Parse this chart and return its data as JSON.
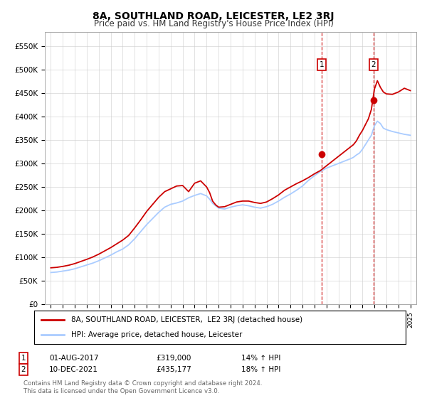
{
  "title": "8A, SOUTHLAND ROAD, LEICESTER, LE2 3RJ",
  "subtitle": "Price paid vs. HM Land Registry's House Price Index (HPI)",
  "ylabel_ticks": [
    "£0",
    "£50K",
    "£100K",
    "£150K",
    "£200K",
    "£250K",
    "£300K",
    "£350K",
    "£400K",
    "£450K",
    "£500K",
    "£550K"
  ],
  "ytick_values": [
    0,
    50000,
    100000,
    150000,
    200000,
    250000,
    300000,
    350000,
    400000,
    450000,
    500000,
    550000
  ],
  "ylim": [
    0,
    580000
  ],
  "hpi_color": "#aaccff",
  "price_color": "#cc0000",
  "vline_color": "#cc0000",
  "marker1_year": 2017.6,
  "marker1_price": 319000,
  "marker2_year": 2021.94,
  "marker2_price": 435177,
  "legend_label_red": "8A, SOUTHLAND ROAD, LEICESTER,  LE2 3RJ (detached house)",
  "legend_label_blue": "HPI: Average price, detached house, Leicester",
  "annotation1": [
    "1",
    "01-AUG-2017",
    "£319,000",
    "14% ↑ HPI"
  ],
  "annotation2": [
    "2",
    "10-DEC-2021",
    "£435,177",
    "18% ↑ HPI"
  ],
  "footer": "Contains HM Land Registry data © Crown copyright and database right 2024.\nThis data is licensed under the Open Government Licence v3.0.",
  "background_color": "#ffffff",
  "grid_color": "#cccccc",
  "years": [
    1995,
    1995.5,
    1996,
    1996.5,
    1997,
    1997.5,
    1998,
    1998.5,
    1999,
    1999.5,
    2000,
    2000.5,
    2001,
    2001.5,
    2002,
    2002.5,
    2003,
    2003.5,
    2004,
    2004.5,
    2005,
    2005.5,
    2006,
    2006.5,
    2007,
    2007.5,
    2008,
    2008.25,
    2008.5,
    2008.75,
    2009,
    2009.5,
    2010,
    2010.5,
    2011,
    2011.5,
    2012,
    2012.5,
    2013,
    2013.5,
    2014,
    2014.5,
    2015,
    2015.5,
    2016,
    2016.5,
    2017,
    2017.5,
    2018,
    2018.5,
    2019,
    2019.5,
    2020,
    2020.25,
    2020.5,
    2020.75,
    2021,
    2021.5,
    2021.75,
    2022,
    2022.25,
    2022.5,
    2022.75,
    2023,
    2023.5,
    2024,
    2024.5,
    2025
  ],
  "hpi_vals": [
    68000,
    69000,
    71000,
    73000,
    76000,
    80000,
    84000,
    88000,
    93000,
    99000,
    105000,
    112000,
    118000,
    127000,
    140000,
    155000,
    170000,
    183000,
    196000,
    207000,
    213000,
    216000,
    220000,
    227000,
    232000,
    236000,
    231000,
    224000,
    215000,
    210000,
    205000,
    203000,
    207000,
    210000,
    212000,
    210000,
    207000,
    205000,
    208000,
    213000,
    220000,
    228000,
    235000,
    243000,
    252000,
    264000,
    274000,
    283000,
    290000,
    295000,
    300000,
    305000,
    310000,
    313000,
    318000,
    322000,
    330000,
    350000,
    360000,
    380000,
    390000,
    385000,
    375000,
    372000,
    368000,
    365000,
    362000,
    360000
  ],
  "red_vals": [
    78000,
    79000,
    81000,
    83500,
    87000,
    91500,
    96000,
    101000,
    107000,
    114000,
    121000,
    129000,
    137000,
    147000,
    163000,
    180000,
    198000,
    213000,
    228000,
    240000,
    246000,
    252000,
    253000,
    240000,
    258000,
    263000,
    250000,
    238000,
    220000,
    212000,
    207000,
    208000,
    213000,
    218000,
    220000,
    220000,
    217000,
    215000,
    218000,
    225000,
    233000,
    243000,
    250000,
    257000,
    263000,
    270000,
    278000,
    285000,
    295000,
    305000,
    315000,
    325000,
    335000,
    340000,
    348000,
    360000,
    370000,
    395000,
    415000,
    458000,
    476000,
    462000,
    452000,
    448000,
    447000,
    452000,
    460000,
    455000
  ]
}
